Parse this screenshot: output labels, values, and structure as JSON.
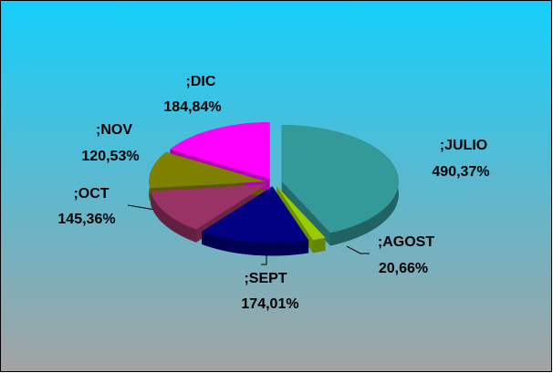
{
  "chart_data": {
    "type": "pie",
    "categories": [
      ";JULIO",
      ";AGOST",
      ";SEPT",
      ";OCT",
      ";NOV",
      ";DIC"
    ],
    "values": [
      490.37,
      20.66,
      174.01,
      145.36,
      120.53,
      184.84
    ],
    "value_labels": [
      "490,37%",
      "20,66%",
      "174,01%",
      "145,36%",
      "120,53%",
      "184,84%"
    ],
    "colors": [
      "#339999",
      "#99cc00",
      "#000080",
      "#993366",
      "#808000",
      "#ff00ff"
    ]
  }
}
